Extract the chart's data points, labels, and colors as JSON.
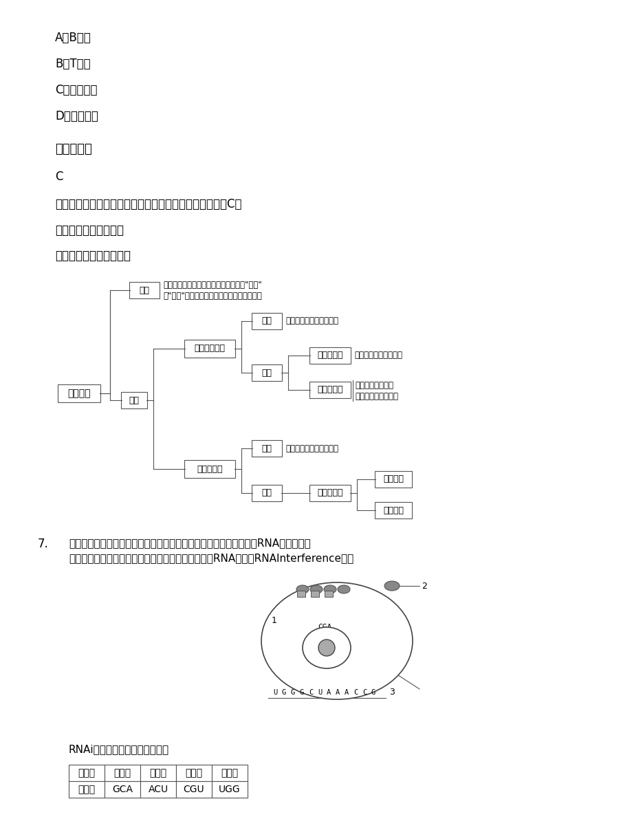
{
  "bg_color": "#ffffff",
  "text_color": "#000000",
  "options": [
    "A．B细胞",
    "B．T细胞",
    "C．吞噬细胞",
    "D．记忆细胞"
  ],
  "answer_header": "参考答案：",
  "answer_text": "C",
  "explanation": "人体的第二道防线是体液中的杀菌物质和吞噬细胞，故选C。",
  "kaodian": "【考点定位】免疫调节",
  "mingshi": "【名师点睛】免疫概述：",
  "q7_number": "7.",
  "q7_text1": "下图是人体细胞内蛋白质合成的一个过程。近年科学家还发现，一些RNA小片段能够",
  "q7_text2": "使细胞内特定的基因处于关闭状态，这种现象被称作RNA干扰（RNAInterference简称",
  "q7_text3": "RNAi）。请分析回答下列问题：",
  "table_headers": [
    "氨基酸",
    "丙氨酸",
    "苏氨酸",
    "精氨酸",
    "色氨酸"
  ],
  "table_row2": [
    "密码子",
    "GCA",
    "ACU",
    "CGU",
    "UGG"
  ]
}
